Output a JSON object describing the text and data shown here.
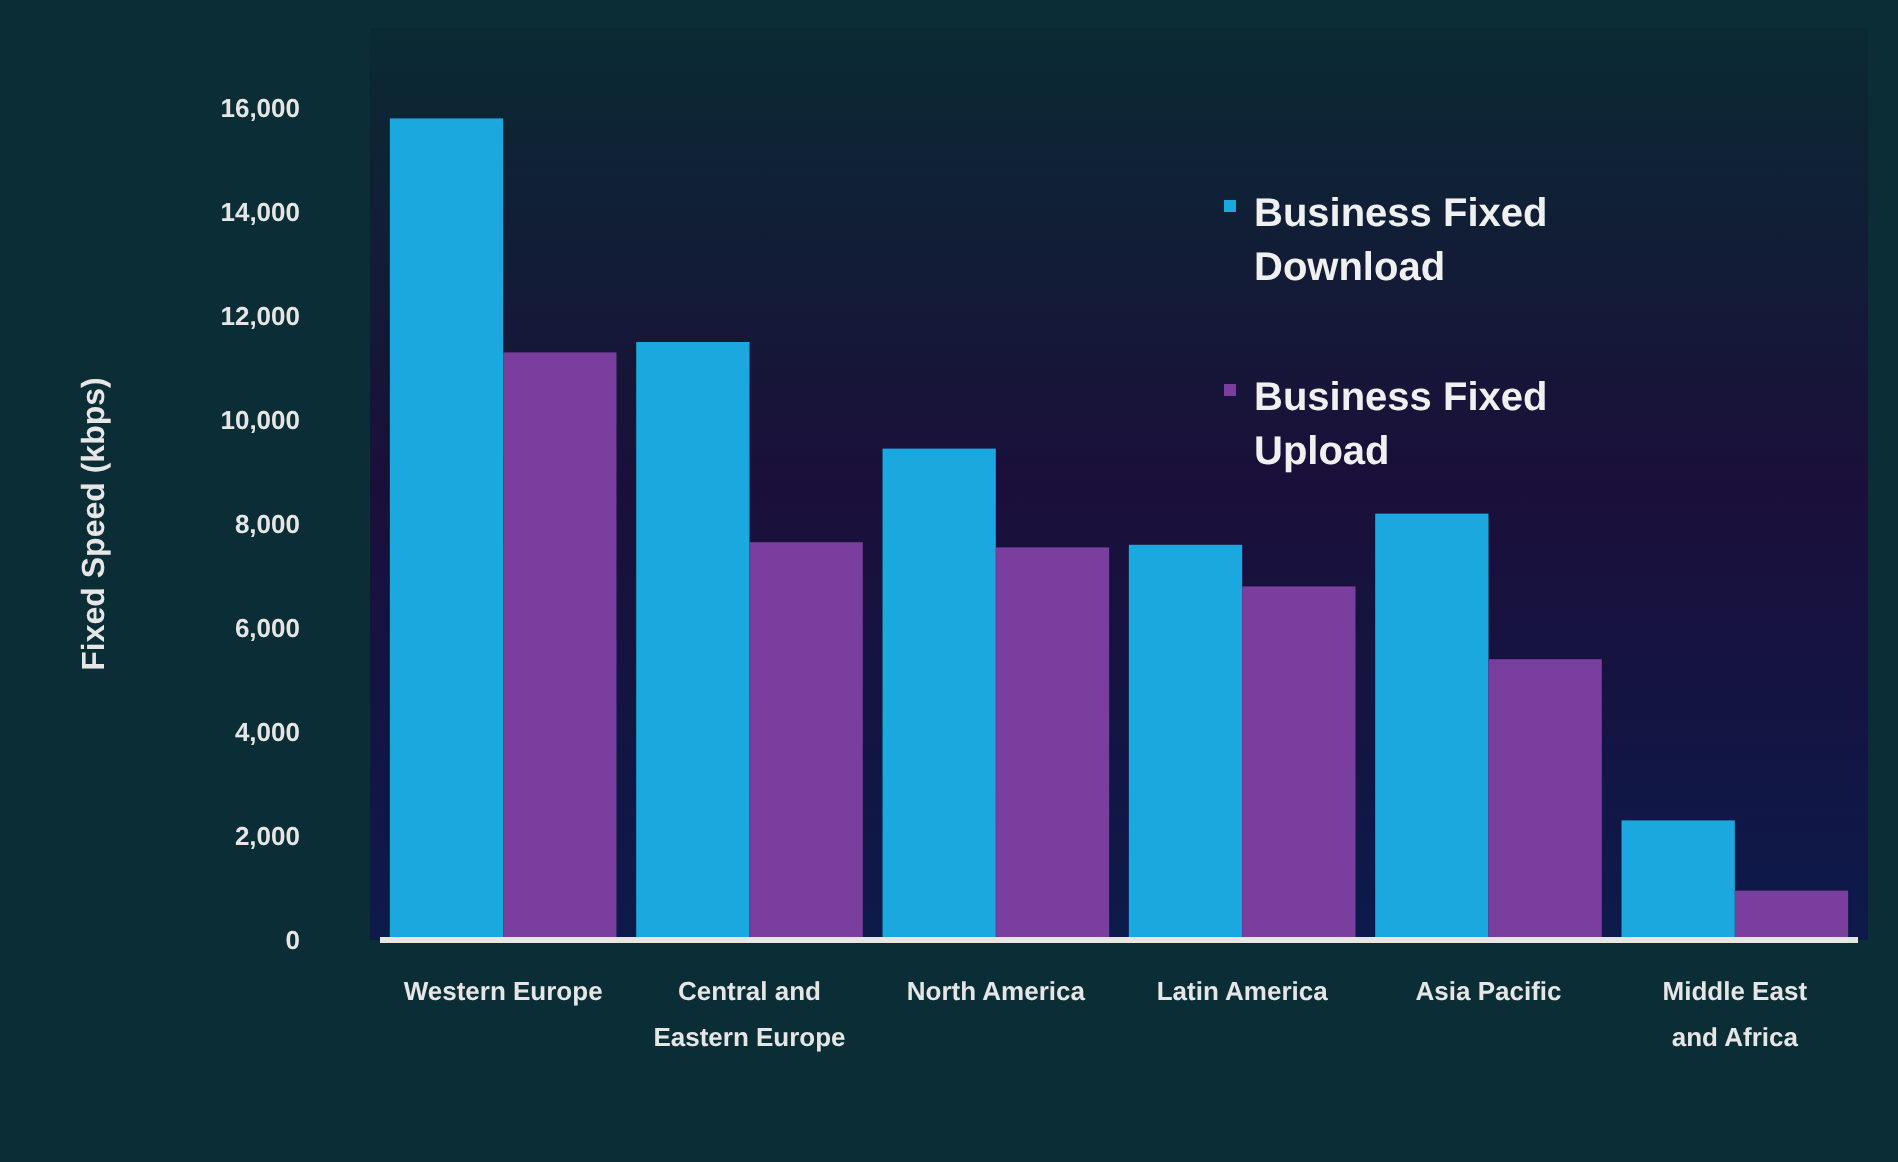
{
  "chart_data": {
    "type": "bar",
    "ylabel": "Fixed Speed (kbps)",
    "categories": [
      "Western Europe",
      "Central and Eastern Europe",
      "North America",
      "Latin America",
      "Asia Pacific",
      "Middle East and Africa"
    ],
    "series": [
      {
        "name": "Business Fixed Download",
        "color": "#1ba8de",
        "values": [
          15800,
          11500,
          9450,
          7600,
          8200,
          2300
        ]
      },
      {
        "name": "Business Fixed Upload",
        "color": "#7a3e9e",
        "values": [
          11300,
          7650,
          7550,
          6800,
          5400,
          950
        ]
      }
    ],
    "ylim": [
      0,
      16000
    ],
    "yticks": [
      {
        "value": 0,
        "label": "0"
      },
      {
        "value": 2000,
        "label": "2,000"
      },
      {
        "value": 4000,
        "label": "4,000"
      },
      {
        "value": 6000,
        "label": "6,000"
      },
      {
        "value": 8000,
        "label": "8,000"
      },
      {
        "value": 10000,
        "label": "10,000"
      },
      {
        "value": 12000,
        "label": "12,000"
      },
      {
        "value": 14000,
        "label": "14,000"
      },
      {
        "value": 16000,
        "label": "16,000"
      }
    ],
    "legend": "top right",
    "grid": false
  }
}
